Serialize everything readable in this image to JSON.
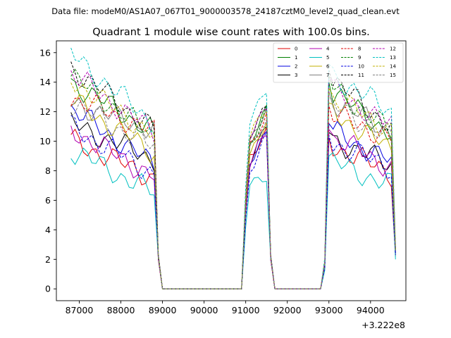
{
  "suptitle": "Data file: modeM0/AS1A07_067T01_9000003578_24187cztM0_level2_quad_clean.evt",
  "chart_data": {
    "type": "line",
    "title": "Quadrant 1 module wise count rates with 100.0s bins.",
    "xlabel": "",
    "ylabel": "",
    "x_offset_label": "+3.222e8",
    "xlim": [
      86450,
      94850
    ],
    "ylim": [
      -0.8,
      16.8
    ],
    "xticks": [
      87000,
      88000,
      89000,
      90000,
      91000,
      92000,
      93000,
      94000
    ],
    "xtick_labels": [
      "87000",
      "88000",
      "89000",
      "90000",
      "91000",
      "92000",
      "93000",
      "94000"
    ],
    "yticks": [
      0,
      2,
      4,
      6,
      8,
      10,
      12,
      14,
      16
    ],
    "ytick_labels": [
      "0",
      "2",
      "4",
      "6",
      "8",
      "10",
      "12",
      "14",
      "16"
    ],
    "grid": false,
    "legend_position": "top-right",
    "legend_columns": 4,
    "segments": [
      {
        "start": 86800,
        "n": 21
      },
      {
        "start": 88900,
        "n": 2
      },
      {
        "start": 89100,
        "n": 18
      },
      {
        "start": 90900,
        "n": 2
      },
      {
        "start": 91100,
        "n": 5
      },
      {
        "start": 91600,
        "n": 2
      },
      {
        "start": 91800,
        "n": 11
      },
      {
        "start": 92900,
        "n": 2
      },
      {
        "start": 93100,
        "n": 15
      },
      {
        "start": 94600,
        "n": 1
      }
    ],
    "series": [
      {
        "name": "0",
        "color": "#e00000",
        "dashed": false,
        "a": 10.1,
        "b": 7.5,
        "c": 9.0,
        "d": 10.4,
        "e": 10.2,
        "f": 7.8,
        "g": 2.2
      },
      {
        "name": "1",
        "color": "#008000",
        "dashed": false,
        "a": 14.0,
        "b": 10.6,
        "c": 9.6,
        "d": 12.2,
        "e": 14.0,
        "f": 10.5,
        "g": 2.6
      },
      {
        "name": "2",
        "color": "#0000e0",
        "dashed": false,
        "a": 12.2,
        "b": 8.4,
        "c": 8.6,
        "d": 10.8,
        "e": 11.2,
        "f": 8.6,
        "g": 2.4
      },
      {
        "name": "3",
        "color": "#000000",
        "dashed": false,
        "a": 11.2,
        "b": 8.8,
        "c": 8.8,
        "d": 11.0,
        "e": 10.6,
        "f": 8.4,
        "g": 2.4
      },
      {
        "name": "4",
        "color": "#b000b0",
        "dashed": false,
        "a": 10.8,
        "b": 7.6,
        "c": 8.4,
        "d": 10.6,
        "e": 10.8,
        "f": 8.2,
        "g": 2.3
      },
      {
        "name": "5",
        "color": "#00c0c0",
        "dashed": false,
        "a": 9.4,
        "b": 6.5,
        "c": 7.0,
        "d": 7.8,
        "e": 9.0,
        "f": 7.0,
        "g": 2.0
      },
      {
        "name": "6",
        "color": "#c0b000",
        "dashed": false,
        "a": 12.8,
        "b": 9.2,
        "c": 9.2,
        "d": 11.4,
        "e": 12.6,
        "f": 9.4,
        "g": 2.6
      },
      {
        "name": "7",
        "color": "#808080",
        "dashed": false,
        "a": 12.6,
        "b": 10.8,
        "c": 9.8,
        "d": 12.0,
        "e": 13.4,
        "f": 10.6,
        "g": 2.6
      },
      {
        "name": "8",
        "color": "#e00000",
        "dashed": true,
        "a": 13.0,
        "b": 10.6,
        "c": 9.4,
        "d": 11.8,
        "e": 12.4,
        "f": 10.2,
        "g": 2.6
      },
      {
        "name": "9",
        "color": "#008000",
        "dashed": true,
        "a": 14.4,
        "b": 10.4,
        "c": 9.8,
        "d": 12.2,
        "e": 14.4,
        "f": 10.6,
        "g": 2.7
      },
      {
        "name": "10",
        "color": "#0000e0",
        "dashed": true,
        "a": 11.0,
        "b": 7.8,
        "c": 8.0,
        "d": 10.2,
        "e": 10.4,
        "f": 8.2,
        "g": 2.3
      },
      {
        "name": "11",
        "color": "#000000",
        "dashed": true,
        "a": 15.0,
        "b": 10.8,
        "c": 10.2,
        "d": 12.4,
        "e": 14.8,
        "f": 11.0,
        "g": 2.8
      },
      {
        "name": "12",
        "color": "#b000b0",
        "dashed": true,
        "a": 14.6,
        "b": 10.6,
        "c": 10.4,
        "d": 12.6,
        "e": 14.2,
        "f": 11.0,
        "g": 2.8
      },
      {
        "name": "13",
        "color": "#00c0c0",
        "dashed": true,
        "a": 15.9,
        "b": 11.2,
        "c": 11.6,
        "d": 13.4,
        "e": 15.2,
        "f": 12.0,
        "g": 3.0
      },
      {
        "name": "14",
        "color": "#c0b000",
        "dashed": true,
        "a": 14.2,
        "b": 10.4,
        "c": 10.2,
        "d": 12.2,
        "e": 13.6,
        "f": 10.8,
        "g": 2.7
      },
      {
        "name": "15",
        "color": "#808080",
        "dashed": true,
        "a": 12.6,
        "b": 9.6,
        "c": 9.4,
        "d": 11.8,
        "e": 13.0,
        "f": 10.2,
        "g": 2.6
      }
    ]
  }
}
